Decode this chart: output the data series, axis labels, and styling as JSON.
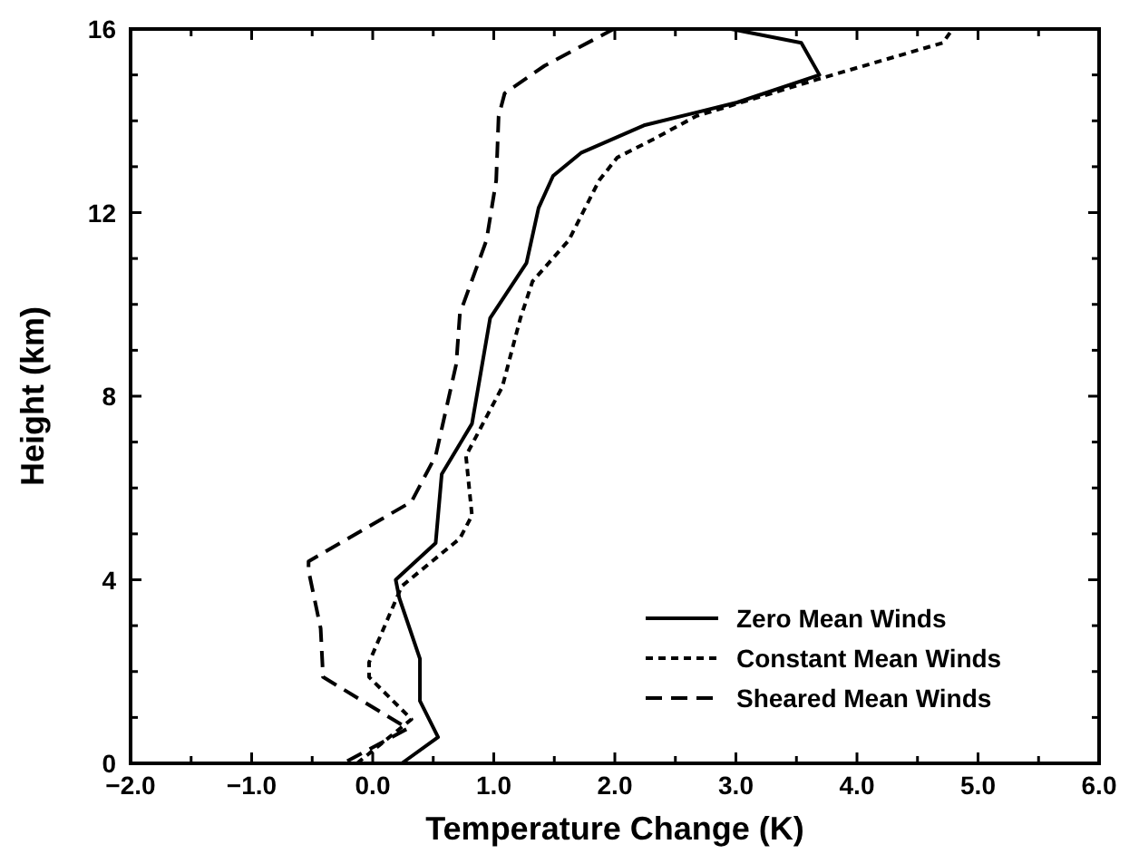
{
  "chart_data": {
    "type": "line",
    "xlabel": "Temperature Change (K)",
    "ylabel": "Height (km)",
    "xlim": [
      -2,
      6
    ],
    "ylim": [
      0,
      16
    ],
    "xticks": [
      {
        "value": -2,
        "label": "−2.0"
      },
      {
        "value": -1.5,
        "label": null
      },
      {
        "value": -1,
        "label": "−1.0"
      },
      {
        "value": -0.5,
        "label": null
      },
      {
        "value": 0,
        "label": "0.0"
      },
      {
        "value": 0.5,
        "label": null
      },
      {
        "value": 1,
        "label": "1.0"
      },
      {
        "value": 1.5,
        "label": null
      },
      {
        "value": 2,
        "label": "2.0"
      },
      {
        "value": 2.5,
        "label": null
      },
      {
        "value": 3,
        "label": "3.0"
      },
      {
        "value": 3.5,
        "label": null
      },
      {
        "value": 4,
        "label": "4.0"
      },
      {
        "value": 4.5,
        "label": null
      },
      {
        "value": 5,
        "label": "5.0"
      },
      {
        "value": 5.5,
        "label": null
      },
      {
        "value": 6,
        "label": "6.0"
      }
    ],
    "yticks": [
      0,
      {
        "value": 1,
        "label": null
      },
      {
        "value": 2,
        "label": null
      },
      {
        "value": 3,
        "label": null
      },
      4,
      {
        "value": 5,
        "label": null
      },
      {
        "value": 6,
        "label": null
      },
      {
        "value": 7,
        "label": null
      },
      8,
      {
        "value": 9,
        "label": null
      },
      {
        "value": 10,
        "label": null
      },
      {
        "value": 11,
        "label": null
      },
      12,
      {
        "value": 13,
        "label": null
      },
      {
        "value": 14,
        "label": null
      },
      {
        "value": 15,
        "label": null
      },
      16
    ],
    "grid": false,
    "legend": "bottom right",
    "marker": "none",
    "series": [
      {
        "name": "Zero Mean Winds",
        "color": "#000000",
        "line_style": "solid",
        "x": [
          0.24,
          0.54,
          0.39,
          0.39,
          0.22,
          0.19,
          0.52,
          0.57,
          0.82,
          0.97,
          1.27,
          1.37,
          1.49,
          1.72,
          2.24,
          3.01,
          3.69,
          3.54,
          2.96
        ],
        "values": [
          0,
          0.57,
          1.36,
          2.28,
          3.6,
          4.0,
          4.8,
          6.3,
          7.4,
          9.7,
          10.9,
          12.1,
          12.8,
          13.3,
          13.9,
          14.4,
          15.0,
          15.7,
          16
        ]
      },
      {
        "name": "Constant Mean Winds",
        "color": "#000000",
        "line_style": "dotted",
        "x": [
          -0.13,
          0.32,
          -0.03,
          -0.03,
          0.24,
          0.72,
          0.82,
          0.77,
          1.07,
          1.22,
          1.32,
          1.62,
          1.87,
          2.02,
          2.32,
          2.67,
          3.67,
          4.71,
          4.79
        ],
        "values": [
          0,
          0.96,
          1.88,
          2.2,
          3.86,
          4.9,
          5.4,
          6.7,
          8.2,
          9.7,
          10.5,
          11.4,
          12.7,
          13.2,
          13.6,
          14.1,
          14.9,
          15.7,
          16
        ]
      },
      {
        "name": "Sheared Mean Winds",
        "color": "#000000",
        "line_style": "dashed",
        "x": [
          -0.21,
          0.29,
          -0.41,
          -0.43,
          -0.53,
          -0.53,
          0.32,
          0.52,
          0.69,
          0.72,
          0.94,
          1.02,
          1.04,
          1.09,
          1.42,
          1.99
        ],
        "values": [
          0.05,
          0.76,
          1.88,
          2.94,
          4.2,
          4.4,
          5.7,
          6.7,
          8.7,
          9.8,
          11.4,
          12.7,
          14.1,
          14.6,
          15.2,
          16
        ]
      }
    ]
  }
}
